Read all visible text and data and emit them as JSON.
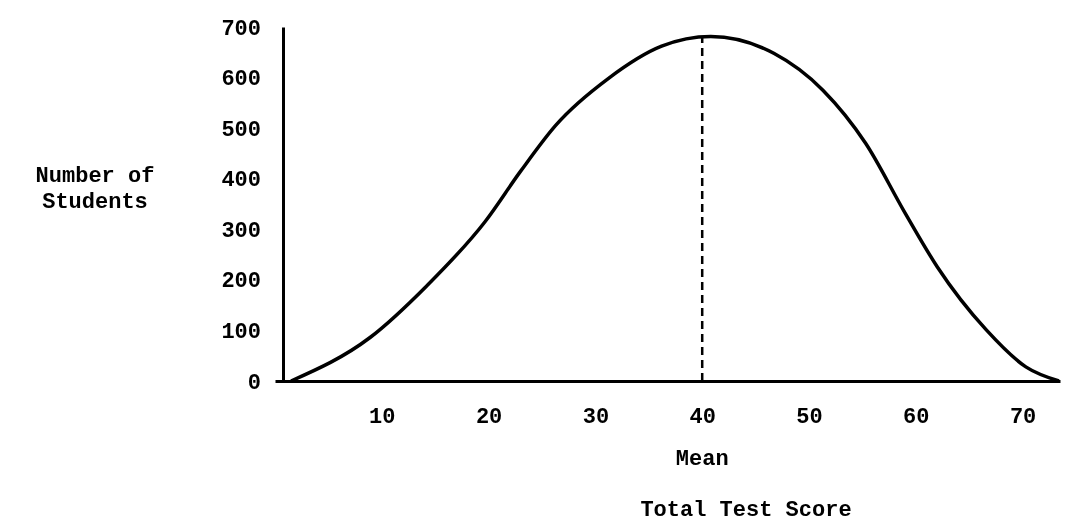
{
  "chart_data": {
    "type": "line",
    "xlabel": "Total Test Score",
    "ylabel": "Number of Students",
    "x": [
      1.5,
      8.9,
      14.2,
      19.7,
      23.0,
      26.3,
      31.2,
      36.2,
      40.8,
      46.7,
      51.3,
      55.3,
      59.0,
      62.0,
      66.6,
      70.3,
      73.4
    ],
    "series": [
      {
        "color": "#000000",
        "values": [
          0,
          86,
          188,
          316,
          415,
          506,
          598,
          662,
          681,
          648,
          575,
          470,
          332,
          226,
          101,
          28,
          0
        ]
      }
    ],
    "xlim": [
      0,
      73.5
    ],
    "xticks": [
      10,
      20,
      30,
      40,
      50,
      60,
      70
    ],
    "ylim": [
      0,
      700
    ],
    "yticks": [
      0,
      100,
      200,
      300,
      400,
      500,
      600,
      700
    ],
    "ref_lines": [
      {
        "axis": "x",
        "value": 40,
        "label": "Mean",
        "line_style": "dashed"
      }
    ],
    "grid": false,
    "marker": "none",
    "line_style": "solid"
  }
}
